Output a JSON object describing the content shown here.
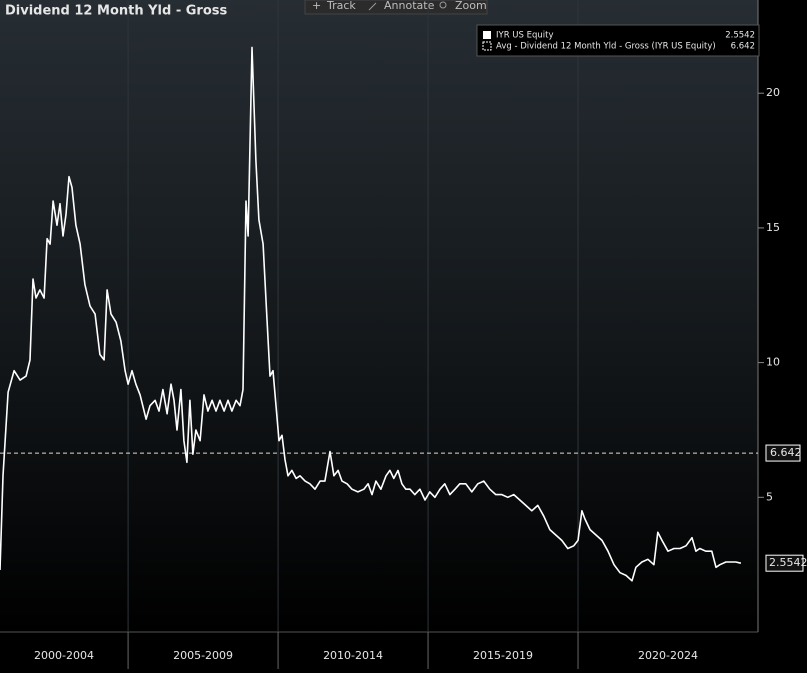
{
  "toolbar": [
    "Track",
    "Annotate",
    "Zoom"
  ],
  "chart_data": {
    "type": "line",
    "title": "Dividend 12 Month Yld - Gross",
    "x": [
      2000.73,
      2000.83,
      2001.0,
      2001.2,
      2001.4,
      2001.6,
      2001.73,
      2001.83,
      2001.93,
      2002.06,
      2002.2,
      2002.3,
      2002.4,
      2002.5,
      2002.63,
      2002.73,
      2002.83,
      2002.93,
      2003.03,
      2003.13,
      2003.26,
      2003.4,
      2003.56,
      2003.73,
      2003.9,
      2004.06,
      2004.2,
      2004.3,
      2004.43,
      2004.6,
      2004.76,
      2004.9,
      2005.0,
      2005.13,
      2005.26,
      2005.4,
      2005.6,
      2005.73,
      2005.9,
      2006.03,
      2006.16,
      2006.3,
      2006.43,
      2006.53,
      2006.63,
      2006.76,
      2006.86,
      2006.96,
      2007.06,
      2007.16,
      2007.26,
      2007.4,
      2007.53,
      2007.66,
      2007.8,
      2007.93,
      2008.06,
      2008.2,
      2008.33,
      2008.46,
      2008.6,
      2008.73,
      2008.83,
      2008.93,
      2009.0,
      2009.13,
      2009.26,
      2009.36,
      2009.5,
      2009.63,
      2009.73,
      2009.83,
      2009.93,
      2010.03,
      2010.13,
      2010.23,
      2010.33,
      2010.46,
      2010.6,
      2010.73,
      2010.9,
      2011.06,
      2011.23,
      2011.4,
      2011.56,
      2011.73,
      2011.86,
      2012.0,
      2012.13,
      2012.3,
      2012.46,
      2012.66,
      2012.86,
      2013.0,
      2013.13,
      2013.26,
      2013.43,
      2013.6,
      2013.73,
      2013.86,
      2014.0,
      2014.13,
      2014.26,
      2014.4,
      2014.56,
      2014.73,
      2014.9,
      2015.06,
      2015.23,
      2015.4,
      2015.56,
      2015.73,
      2015.9,
      2016.06,
      2016.26,
      2016.46,
      2016.66,
      2016.86,
      2017.06,
      2017.26,
      2017.46,
      2017.66,
      2017.86,
      2018.06,
      2018.26,
      2018.46,
      2018.66,
      2018.86,
      2019.06,
      2019.26,
      2019.46,
      2019.66,
      2019.86,
      2020.0,
      2020.13,
      2020.23,
      2020.4,
      2020.6,
      2020.8,
      2021.0,
      2021.2,
      2021.4,
      2021.6,
      2021.8,
      2021.93,
      2022.13,
      2022.33,
      2022.53,
      2022.66,
      2022.8,
      2023.0,
      2023.2,
      2023.4,
      2023.6,
      2023.8,
      2023.93,
      2024.06,
      2024.26,
      2024.46,
      2024.6,
      2024.73,
      2024.93,
      2025.13,
      2025.26,
      2025.43
    ],
    "series": [
      {
        "name": "IYR US Equity",
        "color": "#ffffff",
        "values": [
          2.3,
          5.8,
          8.9,
          9.7,
          9.35,
          9.5,
          10.1,
          13.1,
          12.4,
          12.7,
          12.4,
          14.6,
          14.4,
          16,
          15.1,
          15.9,
          14.7,
          15.5,
          16.9,
          16.5,
          15.1,
          14.4,
          12.9,
          12.1,
          11.8,
          10.3,
          10.1,
          12.7,
          11.8,
          11.5,
          10.8,
          9.7,
          9.2,
          9.7,
          9.2,
          8.8,
          7.9,
          8.4,
          8.6,
          8.2,
          9,
          8.1,
          9.2,
          8.6,
          7.5,
          9,
          7.1,
          6.3,
          8.6,
          6.6,
          7.5,
          7.1,
          8.8,
          8.2,
          8.6,
          8.2,
          8.6,
          8.2,
          8.6,
          8.2,
          8.6,
          8.4,
          9,
          16,
          14.7,
          21.7,
          17.5,
          15.3,
          14.4,
          11.6,
          9.5,
          9.7,
          8.4,
          7.1,
          7.3,
          6.4,
          5.8,
          6,
          5.7,
          5.8,
          5.6,
          5.5,
          5.3,
          5.6,
          5.6,
          6.7,
          5.8,
          6,
          5.6,
          5.5,
          5.3,
          5.2,
          5.3,
          5.5,
          5.1,
          5.6,
          5.3,
          5.8,
          6,
          5.7,
          6,
          5.5,
          5.3,
          5.3,
          5.1,
          5.3,
          4.9,
          5.2,
          5,
          5.3,
          5.5,
          5.1,
          5.3,
          5.5,
          5.5,
          5.2,
          5.5,
          5.6,
          5.3,
          5.1,
          5.1,
          5,
          5.1,
          4.9,
          4.7,
          4.5,
          4.7,
          4.3,
          3.8,
          3.6,
          3.4,
          3.1,
          3.2,
          3.4,
          4.5,
          4.2,
          3.8,
          3.6,
          3.4,
          3,
          2.5,
          2.2,
          2.1,
          1.9,
          2.4,
          2.6,
          2.7,
          2.5,
          3.7,
          3.4,
          3,
          3.1,
          3.1,
          3.2,
          3.5,
          3,
          3.1,
          3,
          3,
          2.4,
          2.5,
          2.6,
          2.6,
          2.6,
          2.5542
        ]
      }
    ],
    "reference_lines": [
      {
        "name": "Avg - Dividend 12 Month Yld - Gross (IYR US Equity)",
        "value": 6.642,
        "color": "#ffffff",
        "dashed": true
      }
    ],
    "xlim": [
      2000.73,
      2026.0
    ],
    "xticks": [
      {
        "value": 2000,
        "label": "2000-2004"
      },
      {
        "value": 2005,
        "label": "2005-2009"
      },
      {
        "value": 2010,
        "label": "2010-2014"
      },
      {
        "value": 2015,
        "label": "2015-2019"
      },
      {
        "value": 2020,
        "label": "2020-2024"
      }
    ],
    "ylim": [
      0,
      23.46
    ],
    "yticks": [
      5,
      10,
      15,
      20
    ],
    "grid": true,
    "legend_position": "top-right"
  }
}
